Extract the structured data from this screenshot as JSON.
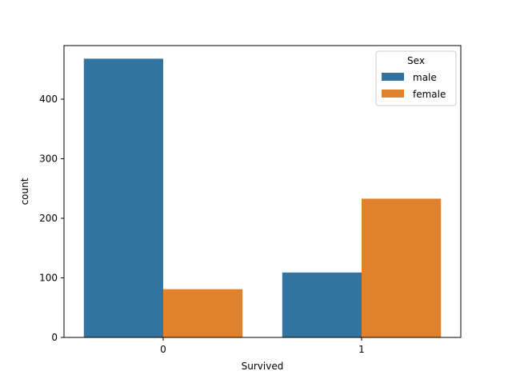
{
  "chart_data": {
    "type": "bar",
    "title": "",
    "xlabel": "Survived",
    "ylabel": "count",
    "categories": [
      "0",
      "1"
    ],
    "series": [
      {
        "name": "male",
        "values": [
          468,
          109
        ],
        "color": "#3274a1"
      },
      {
        "name": "female",
        "values": [
          81,
          233
        ],
        "color": "#e1812c"
      }
    ],
    "ylim": [
      0,
      490
    ],
    "yticks": [
      0,
      100,
      200,
      300,
      400
    ],
    "grid": false,
    "legend": {
      "title": "Sex",
      "placement": "top-right"
    }
  }
}
